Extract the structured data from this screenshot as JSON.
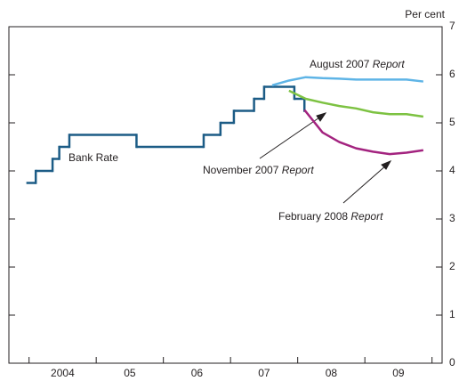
{
  "chart_data": {
    "type": "line",
    "y_axis_label": "Per cent",
    "xlim": [
      2003.7,
      2010.15
    ],
    "xticks": [
      {
        "value": 2004.5,
        "label": "2004"
      },
      {
        "value": 2005.5,
        "label": "05"
      },
      {
        "value": 2006.5,
        "label": "06"
      },
      {
        "value": 2007.5,
        "label": "07"
      },
      {
        "value": 2008.5,
        "label": "08"
      },
      {
        "value": 2009.5,
        "label": "09"
      }
    ],
    "xtick_marks": [
      2004,
      2005,
      2006,
      2007,
      2008,
      2009,
      2010
    ],
    "ylim": [
      0,
      7
    ],
    "yticks": [
      0,
      1,
      2,
      3,
      4,
      5,
      6,
      7
    ],
    "series": [
      {
        "name": "Bank Rate",
        "color": "#1c5c86",
        "step": true,
        "x": [
          2003.96,
          2004.1,
          2004.35,
          2004.45,
          2004.6,
          2005.6,
          2006.6,
          2006.85,
          2007.05,
          2007.35,
          2007.5,
          2007.95,
          2008.1
        ],
        "values": [
          3.75,
          4,
          4.25,
          4.5,
          4.75,
          4.5,
          4.75,
          5,
          5.25,
          5.5,
          5.75,
          5.5,
          5.25
        ]
      },
      {
        "name": "August 2007 Report",
        "color": "#5eb4e6",
        "x": [
          2007.62,
          2007.87,
          2008.12,
          2008.37,
          2008.62,
          2008.87,
          2009.12,
          2009.37,
          2009.62,
          2009.87
        ],
        "values": [
          5.78,
          5.88,
          5.95,
          5.93,
          5.92,
          5.9,
          5.9,
          5.9,
          5.9,
          5.86
        ]
      },
      {
        "name": "November 2007 Report",
        "color": "#7dc242",
        "x": [
          2007.87,
          2008.12,
          2008.37,
          2008.62,
          2008.87,
          2009.12,
          2009.37,
          2009.62,
          2009.87
        ],
        "values": [
          5.67,
          5.5,
          5.42,
          5.35,
          5.3,
          5.22,
          5.18,
          5.18,
          5.13
        ]
      },
      {
        "name": "February 2008 Report",
        "color": "#a3237f",
        "x": [
          2008.1,
          2008.37,
          2008.62,
          2008.87,
          2009.12,
          2009.37,
          2009.62,
          2009.87
        ],
        "values": [
          5.27,
          4.8,
          4.6,
          4.47,
          4.4,
          4.35,
          4.38,
          4.43
        ]
      }
    ],
    "annotations": [
      {
        "text": "Bank Rate"
      },
      {
        "text": "August 2007",
        "italic": "Report"
      },
      {
        "text": "November 2007",
        "italic": "Report"
      },
      {
        "text": "February 2008",
        "italic": "Report"
      }
    ]
  }
}
